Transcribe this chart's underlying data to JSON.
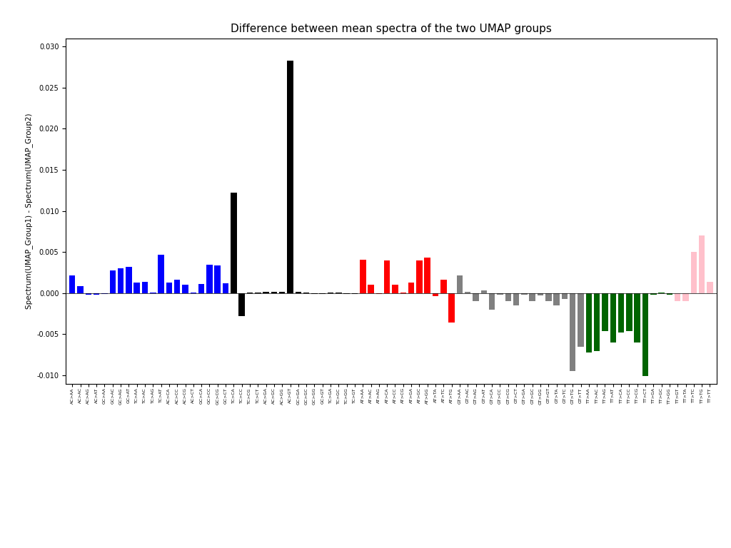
{
  "title": "Difference between mean spectra of the two UMAP groups",
  "ylabel": "Spectrum(UMAP_Group1) - Spectrum(UMAP_Group2)",
  "ylim": [
    -0.011,
    0.031
  ],
  "yticks": [
    -0.01,
    -0.005,
    0.0,
    0.005,
    0.01,
    0.015,
    0.02,
    0.025,
    0.03
  ],
  "categories": [
    "AC>AA",
    "AC>AC",
    "AC>AG",
    "AC>AT",
    "GC>AA",
    "GC>AC",
    "GC>AG",
    "GC>AT",
    "TC>AA",
    "TC>AC",
    "TC>AG",
    "TC>AT",
    "AC>CA",
    "AC>CC",
    "AC>CG",
    "AC>CT",
    "GC>CA",
    "GC>CC",
    "GC>CG",
    "GC>CT",
    "TC>CA",
    "TC>CC",
    "TC>CG",
    "TC>CT",
    "AC>GA",
    "AC>GC",
    "AC>GG",
    "AC>GT",
    "GC>GA",
    "GC>GC",
    "GC>GG",
    "GC>GT",
    "TC>GA",
    "TC>GC",
    "TC>GG",
    "TC>GT",
    "AT>AA",
    "AT>AC",
    "AT>AG",
    "AT>CA",
    "AT>CC",
    "AT>CG",
    "AT>GA",
    "AT>GC",
    "AT>GG",
    "AT>TA",
    "AT>TC",
    "AT>TG",
    "GT>AA",
    "GT>AC",
    "GT>AG",
    "GT>AT",
    "GT>CA",
    "GT>CC",
    "GT>CG",
    "GT>CT",
    "GT>GA",
    "GT>GC",
    "GT>GG",
    "GT>GT",
    "GT>TA",
    "GT>TC",
    "GT>TG",
    "GT>TT",
    "TT>AA",
    "TT>AC",
    "TT>AG",
    "TT>AT",
    "TT>CA",
    "TT>CC",
    "TT>CG",
    "TT>CT",
    "TT>GA",
    "TT>GC",
    "TT>GG",
    "TT>GT",
    "TT>TA",
    "TT>TC",
    "TT>TG",
    "TT>TT"
  ],
  "values": [
    0.0022,
    0.0009,
    -0.0002,
    -0.0002,
    -0.0001,
    0.0028,
    0.003,
    0.0032,
    0.0013,
    0.0014,
    0.0001,
    0.0047,
    0.0013,
    0.0016,
    0.001,
    0.0001,
    0.0011,
    0.0035,
    0.0034,
    0.0012,
    0.0122,
    -0.0028,
    0.0001,
    0.0001,
    0.0002,
    0.0002,
    0.0002,
    0.0283,
    0.0002,
    0.0001,
    -0.0001,
    -0.0001,
    0.0001,
    0.0001,
    -0.0001,
    -0.0001,
    0.0041,
    0.001,
    -0.0001,
    0.004,
    0.001,
    0.0001,
    0.0013,
    0.004,
    0.0043,
    -0.0004,
    0.0016,
    -0.0036,
    0.0022,
    0.0002,
    -0.001,
    0.0003,
    -0.002,
    -0.0002,
    -0.001,
    -0.0015,
    -0.0002,
    -0.001,
    -0.0003,
    -0.001,
    -0.0015,
    -0.0007,
    -0.0095,
    -0.0065,
    -0.0072,
    -0.007,
    -0.0046,
    -0.006,
    -0.0048,
    -0.0046,
    -0.006,
    -0.0101,
    -0.0002,
    0.0001,
    -0.0002,
    -0.001,
    -0.001,
    0.005,
    0.007,
    0.0014
  ],
  "colors": [
    "blue",
    "blue",
    "blue",
    "blue",
    "blue",
    "blue",
    "blue",
    "blue",
    "blue",
    "blue",
    "blue",
    "blue",
    "blue",
    "blue",
    "blue",
    "blue",
    "blue",
    "blue",
    "blue",
    "blue",
    "black",
    "black",
    "black",
    "black",
    "black",
    "black",
    "black",
    "black",
    "black",
    "black",
    "black",
    "black",
    "black",
    "black",
    "black",
    "black",
    "red",
    "red",
    "red",
    "red",
    "red",
    "red",
    "red",
    "red",
    "red",
    "red",
    "red",
    "red",
    "gray",
    "gray",
    "gray",
    "gray",
    "gray",
    "gray",
    "gray",
    "gray",
    "gray",
    "gray",
    "gray",
    "gray",
    "gray",
    "gray",
    "gray",
    "gray",
    "darkgreen",
    "darkgreen",
    "darkgreen",
    "darkgreen",
    "darkgreen",
    "darkgreen",
    "darkgreen",
    "darkgreen",
    "darkgreen",
    "darkgreen",
    "darkgreen",
    "pink",
    "pink",
    "pink",
    "pink",
    "pink"
  ],
  "background_color": "#ffffff",
  "title_fontsize": 11,
  "tick_fontsize": 4.5,
  "figsize": [
    10.24,
    7.68
  ],
  "dpi": 100
}
